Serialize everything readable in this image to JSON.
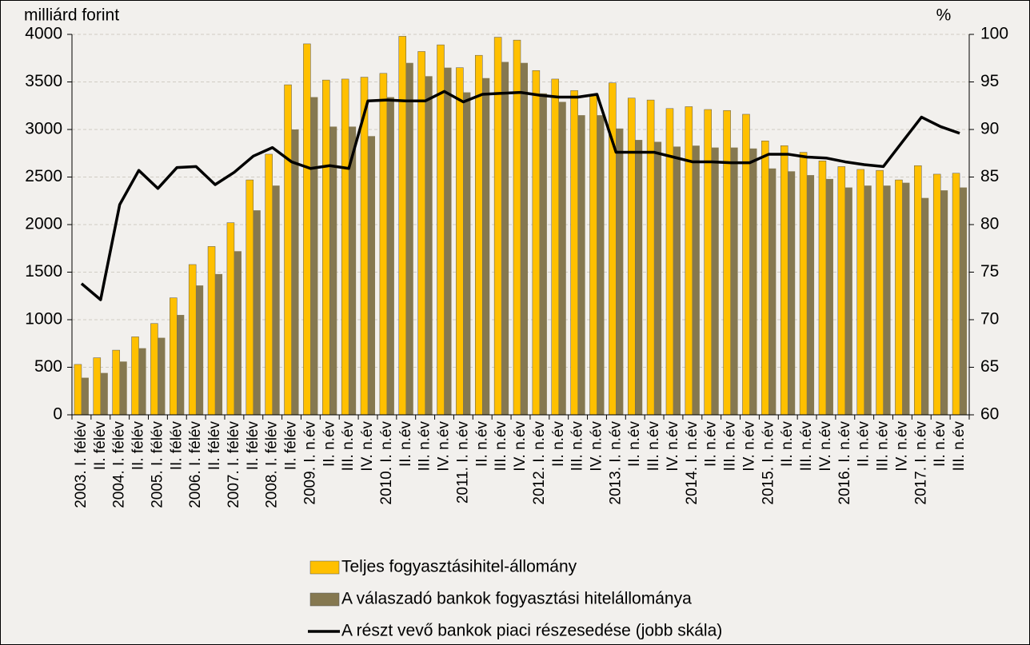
{
  "chart_data": {
    "type": "bar",
    "y_label": "milliárd forint",
    "y2_label": "%",
    "categories": [
      "2003. I. félév",
      "II. félév",
      "2004. I. félév",
      "II. félév",
      "2005. I. félév",
      "II. félév",
      "2006. I. félév",
      "II. félév",
      "2007. I. félév",
      "II. félév",
      "2008. I. félév",
      "II. félév",
      "2009. I. n.év",
      "II. n.év",
      "III. n.év",
      "IV. n.év",
      "2010. I. n.év",
      "II. n.év",
      "III. n.év",
      "IV. n.év",
      "2011. I. n.év",
      "II. n.év",
      "III. n.év",
      "IV. n.év",
      "2012. I. n.év",
      "II. n.év",
      "III. n.év",
      "IV. n.év",
      "2013. I. n.év",
      "II. n.év",
      "III. n.év",
      "IV. n.év",
      "2014. I. n.év",
      "II. n.év",
      "III. n.év",
      "IV. n.év",
      "2015. I. n.év",
      "II. n.év",
      "III. n.év",
      "IV. n.év",
      "2016. I. n.év",
      "II. n.év",
      "III. n.év",
      "IV. n.év",
      "2017. I. n.év",
      "II. n.év",
      "III. n.év"
    ],
    "series": [
      {
        "name": "Teljes fogyasztásihitel-állomány",
        "color": "#ffc000",
        "values": [
          530,
          600,
          680,
          820,
          960,
          1230,
          1580,
          1770,
          2020,
          2470,
          2740,
          3470,
          3900,
          3520,
          3530,
          3550,
          3590,
          3980,
          3820,
          3890,
          3650,
          3780,
          3970,
          3940,
          3620,
          3530,
          3410,
          3360,
          3490,
          3330,
          3310,
          3220,
          3240,
          3210,
          3200,
          3160,
          2880,
          2830,
          2760,
          2670,
          2610,
          2580,
          2570,
          2470,
          2620,
          2530,
          2540
        ]
      },
      {
        "name": "A válaszadó bankok fogyasztási hitelállománya",
        "color": "#857850",
        "values": [
          390,
          440,
          560,
          700,
          810,
          1050,
          1360,
          1480,
          1720,
          2150,
          2410,
          3000,
          3340,
          3030,
          3030,
          2930,
          3340,
          3700,
          3560,
          3650,
          3390,
          3540,
          3710,
          3700,
          3380,
          3290,
          3150,
          3150,
          3010,
          2890,
          2870,
          2820,
          2830,
          2810,
          2810,
          2800,
          2590,
          2560,
          2520,
          2480,
          2390,
          2410,
          2410,
          2440,
          2280,
          2360,
          2390
        ]
      },
      {
        "name": "A részt vevő bankok piaci részesedése (jobb skála)",
        "color": "#000000",
        "type": "line",
        "axis": "y2",
        "values": [
          73.8,
          72.1,
          82.1,
          85.7,
          83.8,
          86.0,
          86.1,
          84.2,
          85.5,
          87.2,
          88.1,
          86.6,
          85.9,
          86.2,
          85.9,
          93.0,
          93.1,
          93.0,
          93.0,
          94.0,
          92.9,
          93.7,
          93.8,
          93.9,
          93.6,
          93.4,
          93.4,
          93.7,
          87.6,
          87.6,
          87.6,
          87.1,
          86.6,
          86.6,
          86.5,
          86.5,
          87.4,
          87.4,
          87.1,
          87.0,
          86.6,
          86.3,
          86.1,
          88.7,
          91.3,
          90.3,
          89.6
        ]
      }
    ],
    "ylim": [
      0,
      4000
    ],
    "yticks": [
      0,
      500,
      1000,
      1500,
      2000,
      2500,
      3000,
      3500,
      4000
    ],
    "y2lim": [
      60,
      100
    ],
    "y2ticks": [
      60,
      65,
      70,
      75,
      80,
      85,
      90,
      95,
      100
    ],
    "grid": true
  }
}
